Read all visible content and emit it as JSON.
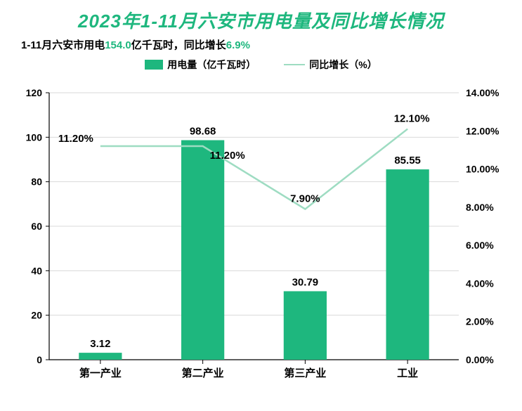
{
  "title": {
    "text": "2023年1-11月六安市用电量及同比增长情况",
    "color": "#1eb77e",
    "fontsize": 26
  },
  "subtitle": {
    "prefix": "1-11月六安市用电",
    "value1": "154.0",
    "unit1": "亿千瓦时，同比增长",
    "value2": "6.9%",
    "highlight_color": "#1eb77e",
    "fontsize": 15,
    "text_color": "#000000"
  },
  "legend": {
    "bar_label": "用电量（亿千瓦时）",
    "line_label": "同比增长（%）",
    "bar_color": "#1eb77e",
    "line_color": "#9edcc2",
    "fontsize": 14
  },
  "chart": {
    "type": "bar+line",
    "categories": [
      "第一产业",
      "第二产业",
      "第三产业",
      "工业"
    ],
    "bar_values": [
      3.12,
      98.68,
      30.79,
      85.55
    ],
    "line_values": [
      11.2,
      11.2,
      7.9,
      12.1
    ],
    "bar_labels": [
      "3.12",
      "98.68",
      "30.79",
      "85.55"
    ],
    "line_labels": [
      "11.20%",
      "11.20%",
      "7.90%",
      "12.10%"
    ],
    "bar_color": "#1eb77e",
    "line_color": "#9edcc2",
    "y_left": {
      "min": 0,
      "max": 120,
      "step": 20,
      "ticks": [
        "0",
        "20",
        "40",
        "60",
        "80",
        "100",
        "120"
      ]
    },
    "y_right": {
      "min": 0,
      "max": 14,
      "step": 2,
      "ticks": [
        "0.00%",
        "2.00%",
        "4.00%",
        "6.00%",
        "8.00%",
        "10.00%",
        "12.00%",
        "14.00%"
      ]
    },
    "grid_color": "#d9d9d9",
    "axis_color": "#000000",
    "bar_width_ratio": 0.42,
    "background_color": "#ffffff",
    "label_fontsize": 15,
    "tick_fontsize": 14
  }
}
